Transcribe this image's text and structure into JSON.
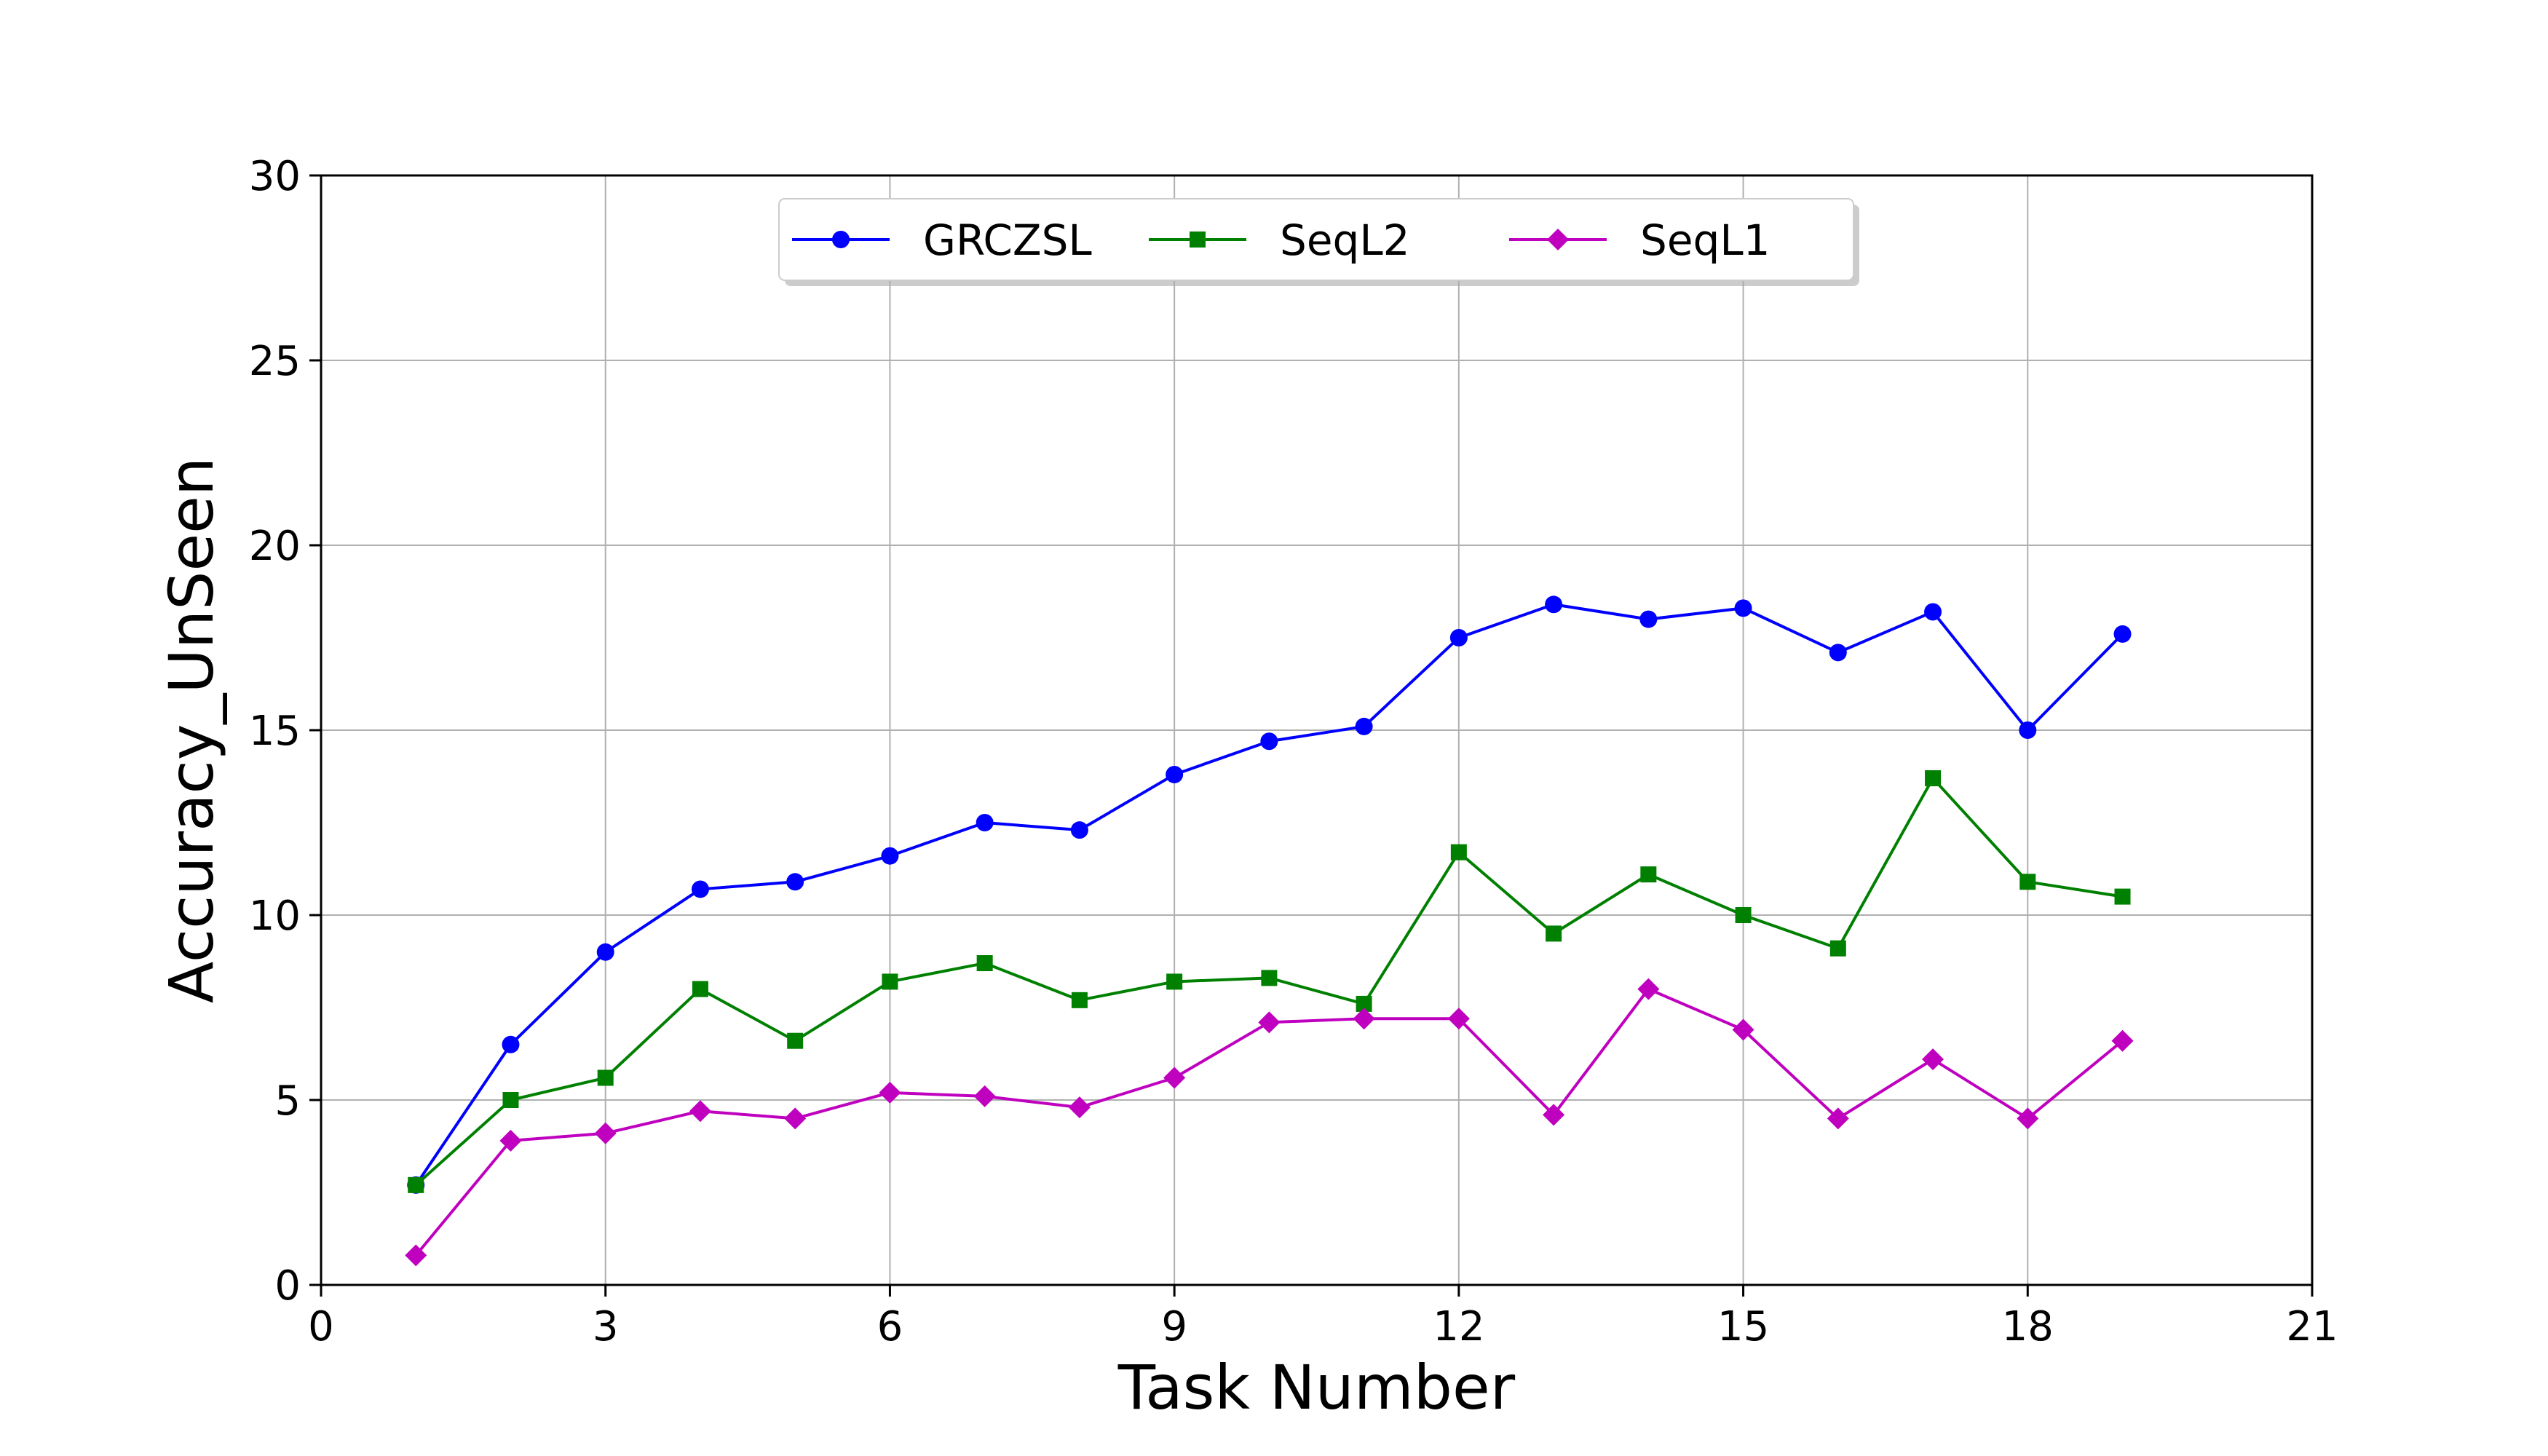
{
  "chart_data": {
    "type": "line",
    "xlabel": "Task Number",
    "ylabel": "Accuracy_UnSeen",
    "xlim": [
      0,
      21
    ],
    "ylim": [
      0,
      30
    ],
    "xticks": [
      0,
      3,
      6,
      9,
      12,
      15,
      18,
      21
    ],
    "yticks": [
      0,
      5,
      10,
      15,
      20,
      25,
      30
    ],
    "grid": true,
    "legend_position": "top-center",
    "x": [
      1,
      2,
      3,
      4,
      5,
      6,
      7,
      8,
      9,
      10,
      11,
      12,
      13,
      14,
      15,
      16,
      17,
      18,
      19
    ],
    "series": [
      {
        "name": "GRCZSL",
        "color": "#0000ff",
        "marker": "circle",
        "values": [
          2.7,
          6.5,
          9.0,
          10.7,
          10.9,
          11.6,
          12.5,
          12.3,
          13.8,
          14.7,
          15.1,
          17.5,
          18.4,
          18.0,
          18.3,
          17.1,
          18.2,
          15.0,
          17.6
        ]
      },
      {
        "name": "SeqL2",
        "color": "#008000",
        "marker": "square",
        "values": [
          2.7,
          5.0,
          5.6,
          8.0,
          6.6,
          8.2,
          8.7,
          7.7,
          8.2,
          8.3,
          7.6,
          11.7,
          9.5,
          11.1,
          10.0,
          9.1,
          13.7,
          10.9,
          10.5
        ]
      },
      {
        "name": "SeqL1",
        "color": "#bf00bf",
        "marker": "diamond",
        "values": [
          0.8,
          3.9,
          4.1,
          4.7,
          4.5,
          5.2,
          5.1,
          4.8,
          5.6,
          7.1,
          7.2,
          7.2,
          4.6,
          8.0,
          6.9,
          4.5,
          6.1,
          4.5,
          6.6
        ]
      }
    ]
  }
}
